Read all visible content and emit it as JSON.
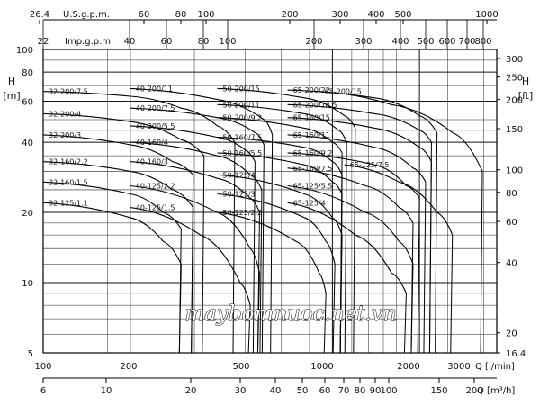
{
  "chart_data": {
    "type": "line",
    "xlabel": "Q [l/min]",
    "ylabel": "H [m]",
    "ylabel_right": "H [ft]",
    "xlim_lpm": [
      100,
      3700
    ],
    "ylim_m": [
      5,
      100
    ],
    "x_scale": "log",
    "y_scale": "log",
    "grid": true,
    "axes": {
      "usgpm": {
        "label": "U.S.g.p.m.",
        "ticks": [
          "26.4",
          "60",
          "80",
          "100",
          "200",
          "300",
          "400",
          "500",
          "1000"
        ]
      },
      "impgpm": {
        "label": "Imp.g.p.m.",
        "ticks": [
          "22",
          "40",
          "60",
          "80",
          "100",
          "200",
          "300",
          "400",
          "500",
          "600",
          "700",
          "800"
        ]
      },
      "lpm": {
        "label": "Q [l/min]",
        "ticks": [
          "100",
          "200",
          "500",
          "1000",
          "2000",
          "3000"
        ]
      },
      "m3h": {
        "label": "Q [m3/h]",
        "ticks": [
          "6",
          "10",
          "20",
          "30",
          "40",
          "50",
          "60",
          "70",
          "80",
          "90",
          "100",
          "150",
          "200"
        ]
      },
      "h_m": {
        "label": "[m]",
        "ticks": [
          "100",
          "80",
          "60",
          "40",
          "20",
          "10",
          "5"
        ]
      },
      "h_ft": {
        "label": "[ft]",
        "ticks": [
          "300",
          "250",
          "200",
          "150",
          "100",
          "80",
          "60",
          "40",
          "20",
          "16.4"
        ]
      }
    },
    "series": [
      {
        "name": "32-200/7.5",
        "x": [
          100,
          200,
          300,
          400,
          460
        ],
        "y": [
          66,
          63,
          56,
          47,
          40
        ]
      },
      {
        "name": "32-200/4",
        "x": [
          100,
          200,
          300,
          360
        ],
        "y": [
          53,
          49,
          41,
          35
        ]
      },
      {
        "name": "32-200/3",
        "x": [
          100,
          200,
          280,
          330
        ],
        "y": [
          43,
          39,
          33,
          29
        ]
      },
      {
        "name": "32-160/2.2",
        "x": [
          100,
          200,
          280,
          330
        ],
        "y": [
          33,
          30,
          25,
          21
        ]
      },
      {
        "name": "32-160/1.5",
        "x": [
          100,
          200,
          260,
          300
        ],
        "y": [
          27,
          24,
          20,
          17
        ]
      },
      {
        "name": "32-125/1.1",
        "x": [
          100,
          200,
          260,
          300
        ],
        "y": [
          22,
          19,
          15,
          12
        ]
      },
      {
        "name": "40-200/11",
        "x": [
          200,
          400,
          580,
          620
        ],
        "y": [
          68,
          61,
          50,
          43
        ]
      },
      {
        "name": "40-200/7.5",
        "x": [
          200,
          400,
          540,
          580
        ],
        "y": [
          56,
          51,
          44,
          39
        ]
      },
      {
        "name": "40-200/5.5",
        "x": [
          200,
          400,
          500,
          540
        ],
        "y": [
          47,
          42,
          37,
          33
        ]
      },
      {
        "name": "40-160/4",
        "x": [
          200,
          400,
          520,
          570
        ],
        "y": [
          40,
          35,
          29,
          25
        ]
      },
      {
        "name": "40-160/3",
        "x": [
          200,
          400,
          520,
          560
        ],
        "y": [
          33,
          28,
          23,
          20
        ]
      },
      {
        "name": "40-125/2.2",
        "x": [
          200,
          400,
          520,
          560
        ],
        "y": [
          26,
          20,
          14,
          11
        ]
      },
      {
        "name": "40-125/1.5",
        "x": [
          200,
          350,
          480,
          520
        ],
        "y": [
          21,
          16,
          10,
          8
        ]
      },
      {
        "name": "50-200/15",
        "x": [
          400,
          800,
          1100,
          1200
        ],
        "y": [
          68,
          62,
          52,
          46
        ]
      },
      {
        "name": "50-200/11",
        "x": [
          400,
          800,
          1050,
          1120
        ],
        "y": [
          58,
          53,
          45,
          40
        ]
      },
      {
        "name": "50-200/9.2",
        "x": [
          400,
          800,
          1000,
          1080
        ],
        "y": [
          51,
          46,
          40,
          36
        ]
      },
      {
        "name": "50-160/7.5",
        "x": [
          400,
          800,
          1000,
          1080
        ],
        "y": [
          42,
          38,
          33,
          29
        ]
      },
      {
        "name": "50-160/5.5",
        "x": [
          400,
          800,
          1000,
          1080
        ],
        "y": [
          36,
          32,
          27,
          24
        ]
      },
      {
        "name": "50-125/4",
        "x": [
          400,
          800,
          1000,
          1080
        ],
        "y": [
          29,
          24,
          19,
          16
        ]
      },
      {
        "name": "50-125/3",
        "x": [
          400,
          800,
          950,
          1020
        ],
        "y": [
          24,
          19,
          15,
          12
        ]
      },
      {
        "name": "50-125/2.2",
        "x": [
          400,
          750,
          900,
          950
        ],
        "y": [
          20,
          15,
          11,
          9
        ]
      },
      {
        "name": "65-200/22",
        "x": [
          700,
          1400,
          2000,
          2300
        ],
        "y": [
          67,
          62,
          52,
          44
        ]
      },
      {
        "name": "65-200/18.5",
        "x": [
          700,
          1400,
          2000,
          2200
        ],
        "y": [
          58,
          53,
          45,
          40
        ]
      },
      {
        "name": "65-200/15",
        "x": [
          900,
          1600,
          2600,
          3300
        ],
        "y": [
          66,
          58,
          44,
          30
        ]
      },
      {
        "name": "65-160/15",
        "x": [
          700,
          1400,
          2000,
          2200
        ],
        "y": [
          51,
          46,
          38,
          33
        ]
      },
      {
        "name": "65-160/11",
        "x": [
          700,
          1400,
          1900,
          2100
        ],
        "y": [
          43,
          38,
          31,
          27
        ]
      },
      {
        "name": "65-160/9.2",
        "x": [
          700,
          1400,
          1800,
          2000
        ],
        "y": [
          36,
          32,
          26,
          23
        ]
      },
      {
        "name": "65-160/7.5",
        "x": [
          700,
          1300,
          1700,
          1900
        ],
        "y": [
          31,
          26,
          21,
          18
        ]
      },
      {
        "name": "65-125/7.5",
        "x": [
          1100,
          1700,
          2300,
          2600
        ],
        "y": [
          32,
          27,
          20,
          16
        ]
      },
      {
        "name": "65-125/5.5",
        "x": [
          700,
          1300,
          1700,
          1900
        ],
        "y": [
          26,
          20,
          15,
          12
        ]
      },
      {
        "name": "65-125/4",
        "x": [
          700,
          1200,
          1600,
          1800
        ],
        "y": [
          22,
          16,
          11,
          9
        ]
      }
    ]
  },
  "watermark": "maybomnuoc.net.vn"
}
